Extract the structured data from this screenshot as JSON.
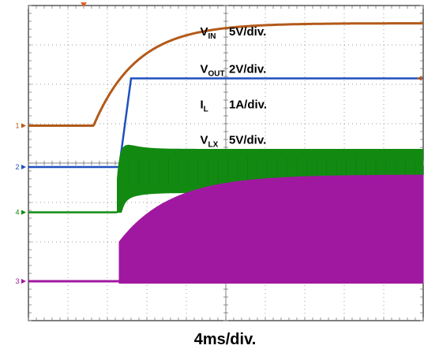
{
  "chart_data": {
    "type": "line",
    "xlabel": "4ms/div.",
    "x_divisions": 10,
    "y_divisions": 8,
    "grid": true,
    "x_unit_ms_per_div": 4,
    "trigger_marker": "down-arrow",
    "channels": [
      {
        "id": "1",
        "marker": "1",
        "name": "V",
        "sub": "IN",
        "scale": "5V/div.",
        "color": "#b35a1a",
        "label_pos": {
          "name_div": [
            0.85,
            0.6
          ],
          "scale_div": [
            1.25,
            0.6
          ]
        }
      },
      {
        "id": "2",
        "marker": "2",
        "name": "V",
        "sub": "OUT",
        "scale": "2V/div.",
        "color": "#1f4fbf",
        "label_pos": {
          "name_div": [
            0.85,
            1.55
          ],
          "scale_div": [
            1.25,
            1.55
          ]
        }
      },
      {
        "id": "4",
        "marker": "4",
        "name": "I",
        "sub": "L",
        "scale": "1A/div.",
        "color": "#128a12",
        "label_pos": {
          "name_div": [
            0.85,
            2.45
          ],
          "scale_div": [
            1.25,
            2.45
          ]
        }
      },
      {
        "id": "3",
        "marker": "3",
        "name": "V",
        "sub": "LX",
        "scale": "5V/div.",
        "color": "#a018a0",
        "label_pos": {
          "name_div": [
            0.85,
            3.35
          ],
          "scale_div": [
            1.25,
            3.35
          ]
        }
      }
    ],
    "traces": {
      "vin": {
        "baseline_div": 3.05,
        "final_div": 0.45,
        "rise_start_div": -3.35,
        "tau_div": 1.1
      },
      "vout": {
        "baseline_div": 4.1,
        "final_div": 1.85,
        "rise_start_div": -2.7,
        "rise_end_div": -2.4
      },
      "il": {
        "baseline_div": 5.25,
        "center_div": 4.2,
        "ripple_div": 0.55,
        "settle_ripple_div": 0.85,
        "rise_start_div": -2.75
      },
      "vlx": {
        "baseline_div": 7.0,
        "bottom_div": 7.05,
        "top_final_div": 4.3,
        "rise_start_div": -2.7,
        "tau_div": 1.3
      }
    }
  }
}
